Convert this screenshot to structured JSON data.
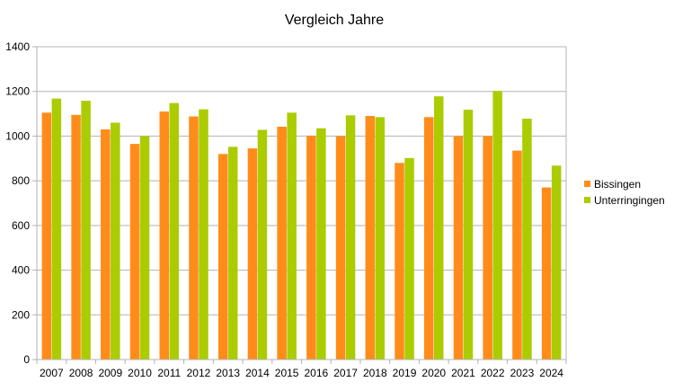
{
  "chart_data": {
    "type": "bar",
    "title": "Vergleich Jahre",
    "xlabel": "",
    "ylabel": "",
    "categories": [
      "2007",
      "2008",
      "2009",
      "2010",
      "2011",
      "2012",
      "2013",
      "2014",
      "2015",
      "2016",
      "2017",
      "2018",
      "2019",
      "2020",
      "2021",
      "2022",
      "2023",
      "2024"
    ],
    "series": [
      {
        "name": "Bissingen",
        "color": "#ff8c1a",
        "values": [
          1105,
          1095,
          1030,
          965,
          1110,
          1088,
          920,
          945,
          1042,
          1002,
          1000,
          1090,
          880,
          1085,
          1000,
          1000,
          935,
          770
        ]
      },
      {
        "name": "Unterringingen",
        "color": "#aacc00",
        "values": [
          1168,
          1158,
          1060,
          1000,
          1148,
          1120,
          952,
          1028,
          1105,
          1035,
          1093,
          1085,
          902,
          1178,
          1118,
          1202,
          1078,
          868
        ]
      }
    ],
    "ylim": [
      0,
      1400
    ],
    "yticks": [
      0,
      200,
      400,
      600,
      800,
      1000,
      1200,
      1400
    ],
    "grid": true,
    "legend": "right"
  }
}
